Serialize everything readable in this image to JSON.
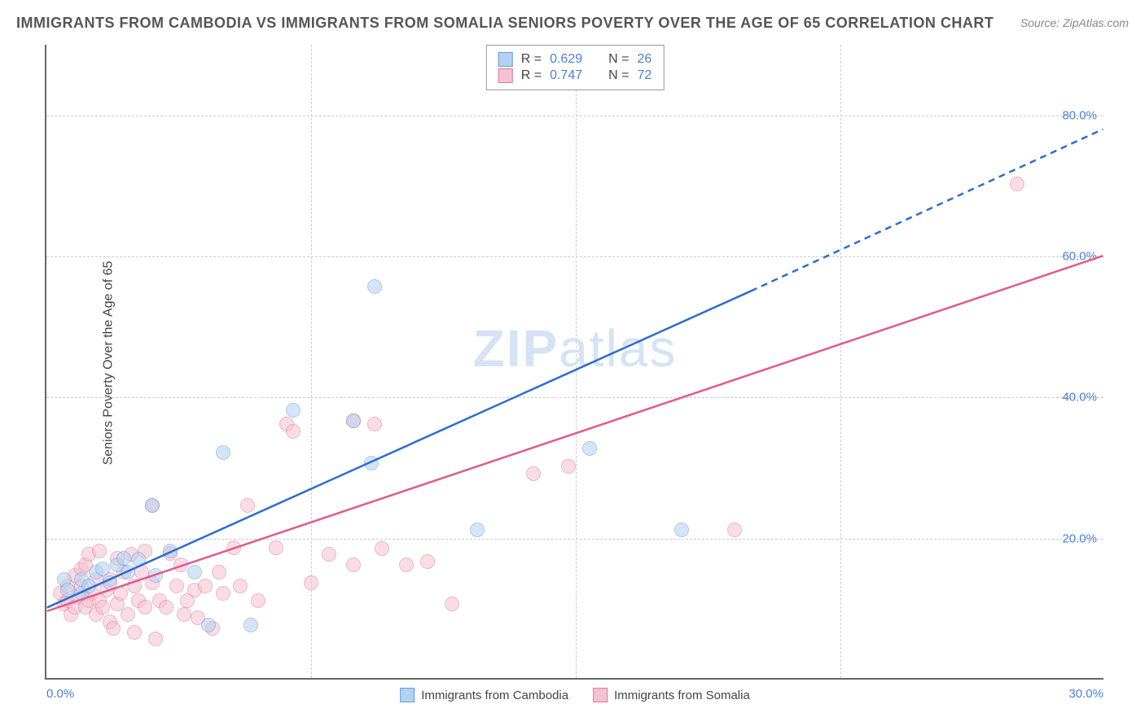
{
  "title": "IMMIGRANTS FROM CAMBODIA VS IMMIGRANTS FROM SOMALIA SENIORS POVERTY OVER THE AGE OF 65 CORRELATION CHART",
  "source": "Source: ZipAtlas.com",
  "watermark_zip": "ZIP",
  "watermark_atlas": "atlas",
  "y_axis_label": "Seniors Poverty Over the Age of 65",
  "chart": {
    "type": "scatter",
    "xlim": [
      0,
      30
    ],
    "ylim": [
      0,
      90
    ],
    "x_ticks": [
      {
        "val": 0,
        "label": "0.0%"
      },
      {
        "val": 30,
        "label": "30.0%"
      }
    ],
    "y_ticks": [
      {
        "val": 20,
        "label": "20.0%"
      },
      {
        "val": 40,
        "label": "40.0%"
      },
      {
        "val": 60,
        "label": "60.0%"
      },
      {
        "val": 80,
        "label": "80.0%"
      }
    ],
    "v_gridlines": [
      7.5,
      15,
      22.5
    ],
    "background_color": "#ffffff",
    "grid_color": "#cccccc",
    "point_radius": 9,
    "point_stroke_width": 1.5,
    "series": [
      {
        "name": "Immigrants from Cambodia",
        "fill": "#b3d1f0",
        "stroke": "#6a9fd8",
        "fill_opacity": 0.55,
        "legend_r": "R = ",
        "r_value": "0.629",
        "legend_n": "N = ",
        "n_value": "26",
        "trend": {
          "x1": 0,
          "y1": 10,
          "x2_solid": 20,
          "y2_solid": 55,
          "x2_dash": 30,
          "y2_dash": 78,
          "color": "#2d6cd0",
          "width": 2.5
        },
        "points": [
          [
            0.5,
            14
          ],
          [
            0.6,
            12.5
          ],
          [
            1.0,
            14
          ],
          [
            1.0,
            12
          ],
          [
            1.2,
            13
          ],
          [
            1.4,
            15
          ],
          [
            1.6,
            15.5
          ],
          [
            1.8,
            13.5
          ],
          [
            2.0,
            16
          ],
          [
            2.2,
            17
          ],
          [
            2.3,
            15
          ],
          [
            2.6,
            16.8
          ],
          [
            3.0,
            24.5
          ],
          [
            3.1,
            14.5
          ],
          [
            3.5,
            18
          ],
          [
            4.2,
            15
          ],
          [
            4.6,
            7.5
          ],
          [
            5.0,
            32
          ],
          [
            5.8,
            7.5
          ],
          [
            7.0,
            38
          ],
          [
            8.7,
            36.5
          ],
          [
            9.2,
            30.5
          ],
          [
            9.3,
            55.5
          ],
          [
            12.2,
            21
          ],
          [
            15.4,
            32.5
          ],
          [
            18.0,
            21
          ]
        ]
      },
      {
        "name": "Immigrants from Somalia",
        "fill": "#f5c2d1",
        "stroke": "#e07b9b",
        "fill_opacity": 0.55,
        "legend_r": "R = ",
        "r_value": "0.747",
        "legend_n": "N = ",
        "n_value": "72",
        "trend": {
          "x1": 0,
          "y1": 9.5,
          "x2_solid": 30,
          "y2_solid": 60,
          "x2_dash": 30,
          "y2_dash": 60,
          "color": "#e05a8a",
          "width": 2.5
        },
        "points": [
          [
            0.4,
            12
          ],
          [
            0.5,
            10.5
          ],
          [
            0.6,
            11
          ],
          [
            0.6,
            13
          ],
          [
            0.7,
            9
          ],
          [
            0.8,
            10
          ],
          [
            0.8,
            14.5
          ],
          [
            0.9,
            11.5
          ],
          [
            1.0,
            15.5
          ],
          [
            1.0,
            13
          ],
          [
            1.1,
            10
          ],
          [
            1.1,
            16
          ],
          [
            1.2,
            11
          ],
          [
            1.2,
            17.5
          ],
          [
            1.3,
            12
          ],
          [
            1.4,
            9
          ],
          [
            1.4,
            14
          ],
          [
            1.5,
            11
          ],
          [
            1.5,
            18
          ],
          [
            1.6,
            10
          ],
          [
            1.7,
            12.5
          ],
          [
            1.8,
            14
          ],
          [
            1.8,
            8
          ],
          [
            1.9,
            7
          ],
          [
            2.0,
            10.5
          ],
          [
            2.0,
            17
          ],
          [
            2.1,
            12
          ],
          [
            2.2,
            15
          ],
          [
            2.3,
            9
          ],
          [
            2.4,
            17.5
          ],
          [
            2.5,
            6.5
          ],
          [
            2.5,
            13
          ],
          [
            2.6,
            11
          ],
          [
            2.7,
            15
          ],
          [
            2.8,
            18
          ],
          [
            2.8,
            10
          ],
          [
            3.0,
            24.5
          ],
          [
            3.0,
            13.5
          ],
          [
            3.1,
            5.5
          ],
          [
            3.2,
            11
          ],
          [
            3.4,
            10
          ],
          [
            3.5,
            17.7
          ],
          [
            3.7,
            13
          ],
          [
            3.8,
            16
          ],
          [
            3.9,
            9
          ],
          [
            4.0,
            11
          ],
          [
            4.2,
            12.5
          ],
          [
            4.3,
            8.5
          ],
          [
            4.5,
            13
          ],
          [
            4.7,
            7
          ],
          [
            4.9,
            15
          ],
          [
            5.0,
            12
          ],
          [
            5.3,
            18.5
          ],
          [
            5.5,
            13
          ],
          [
            5.7,
            24.5
          ],
          [
            6.0,
            11
          ],
          [
            6.5,
            18.5
          ],
          [
            6.8,
            36
          ],
          [
            7.0,
            35
          ],
          [
            7.5,
            13.5
          ],
          [
            8.0,
            17.5
          ],
          [
            8.7,
            36.5
          ],
          [
            8.7,
            16
          ],
          [
            9.3,
            36
          ],
          [
            9.5,
            18.3
          ],
          [
            10.2,
            16
          ],
          [
            10.8,
            16.5
          ],
          [
            11.5,
            10.5
          ],
          [
            13.8,
            29
          ],
          [
            14.8,
            30
          ],
          [
            19.5,
            21
          ],
          [
            27.5,
            70
          ]
        ]
      }
    ]
  }
}
